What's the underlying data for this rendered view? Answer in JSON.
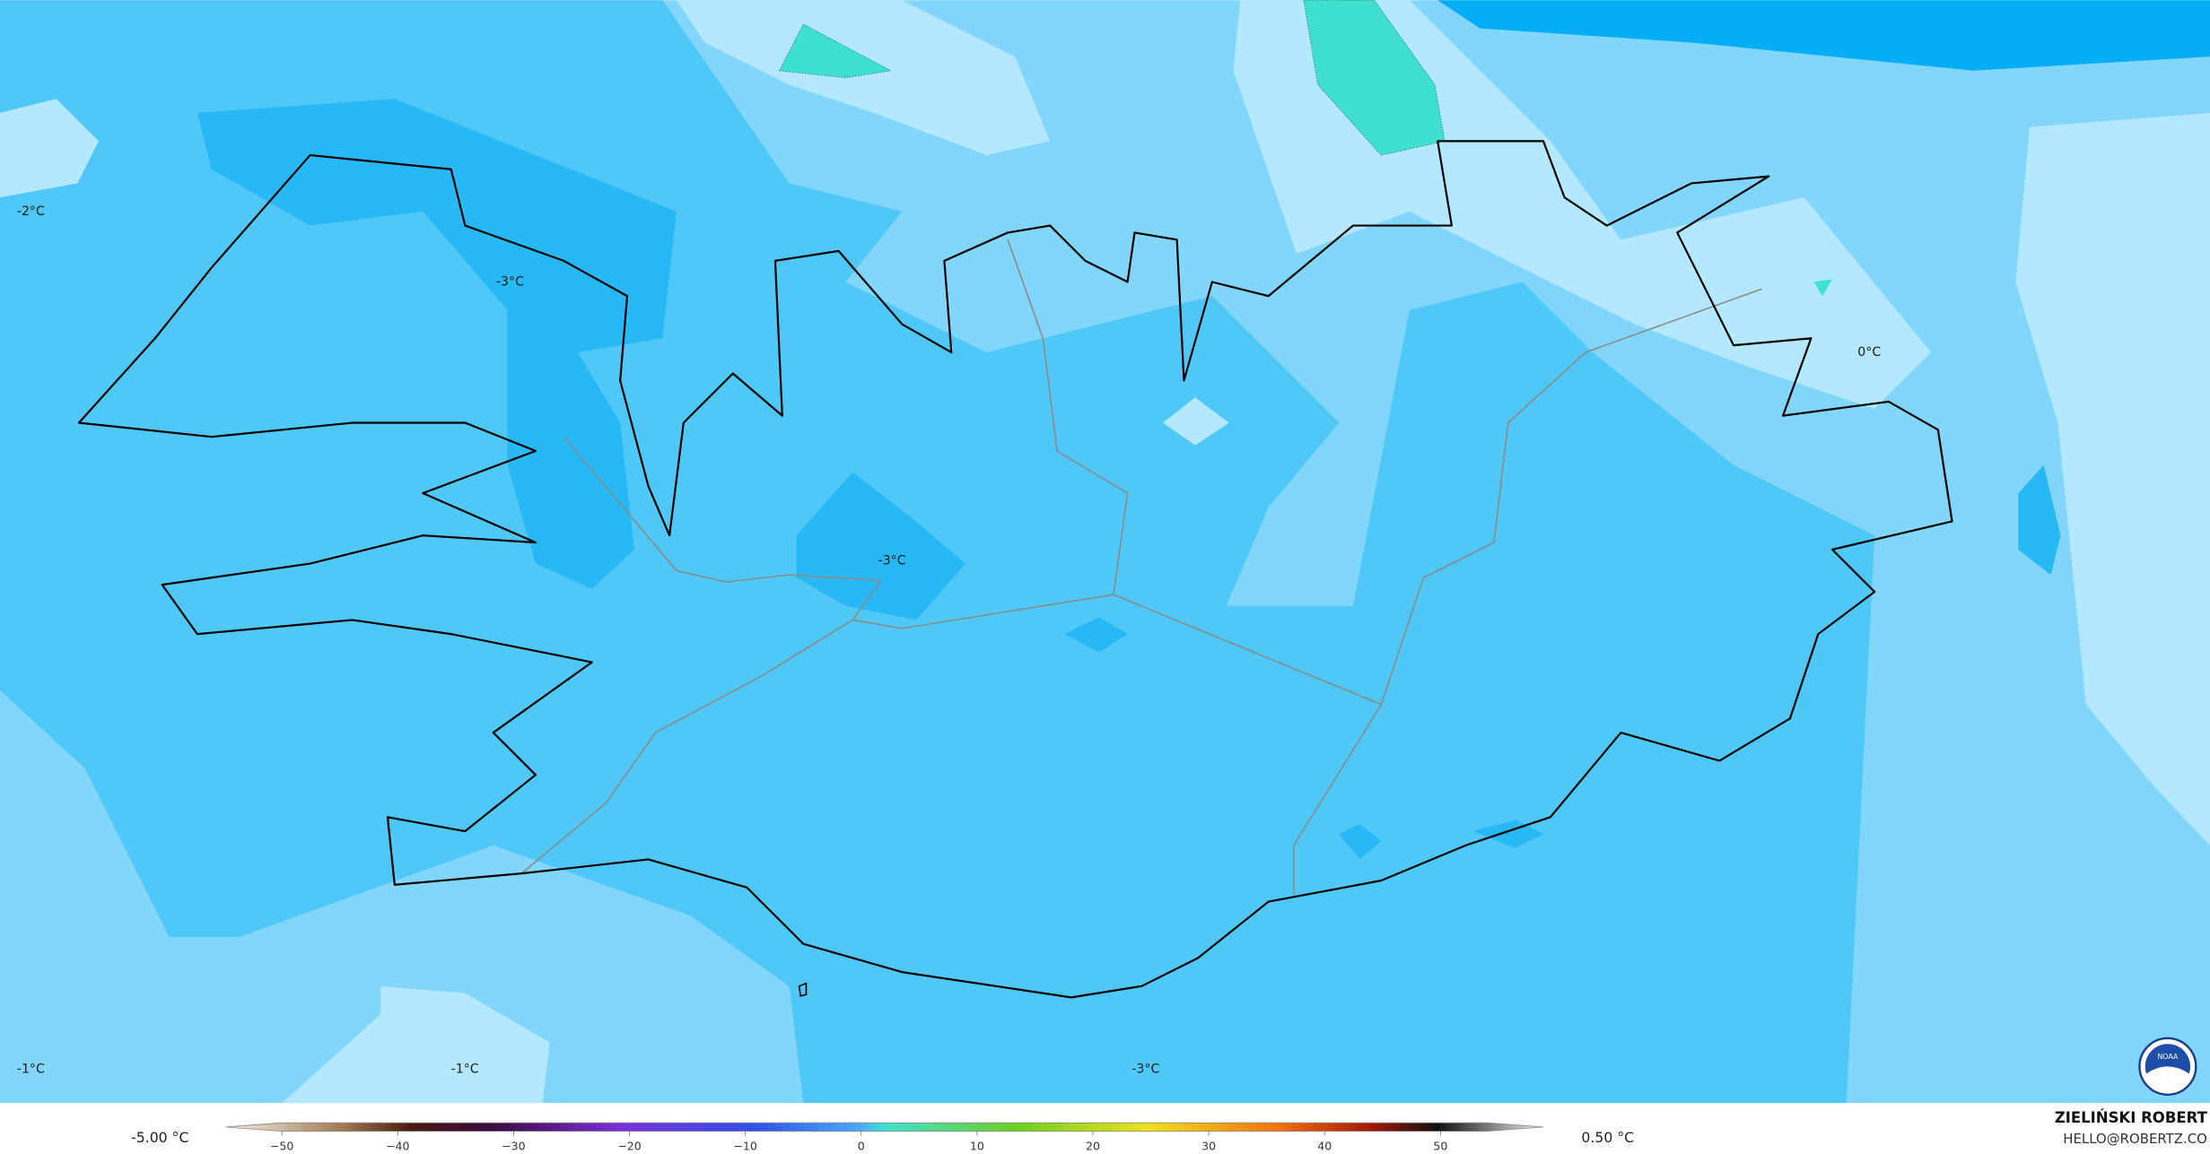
{
  "map_labels": [
    "-2°C",
    "-3°C",
    "-3°C",
    "0°C",
    "-1°C",
    "-1°C",
    "-3°C"
  ],
  "legend": {
    "min_label": "-5.00 °C",
    "max_label": "0.50 °C",
    "ticks": [
      "−50",
      "−40",
      "−30",
      "−20",
      "−10",
      "0",
      "10",
      "20",
      "30",
      "40",
      "50"
    ]
  },
  "credit": {
    "name": "ZIELIŃSKI ROBERT",
    "email": "HELLO@ROBERTZ.CO"
  },
  "logo": "NOAA"
}
